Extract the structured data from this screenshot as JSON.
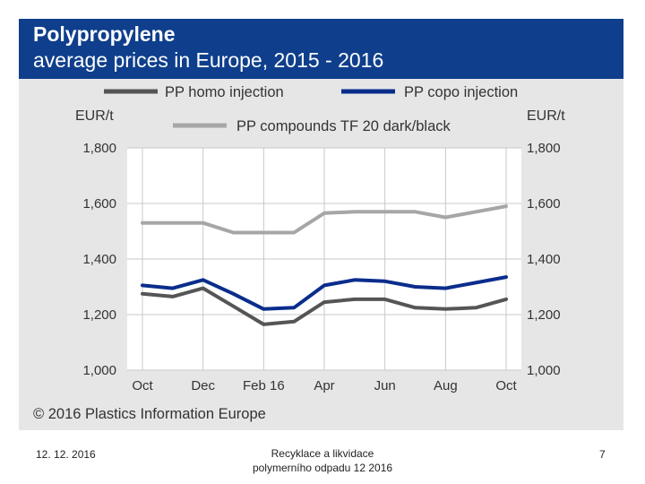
{
  "chart_data": {
    "type": "line",
    "title": "Polypropylene",
    "subtitle": "average prices in Europe, 2015 - 2016",
    "ylabel_left": "EUR/t",
    "ylabel_right": "EUR/t",
    "ylim": [
      1000,
      1800
    ],
    "yticks": [
      1000,
      1200,
      1400,
      1600,
      1800
    ],
    "ytick_labels": [
      "1,000",
      "1,200",
      "1,400",
      "1,600",
      "1,800"
    ],
    "x": [
      "Oct",
      "Nov",
      "Dec",
      "Jan",
      "Feb 16",
      "Mar",
      "Apr",
      "May",
      "Jun",
      "Jul",
      "Aug",
      "Sep",
      "Oct"
    ],
    "xtick_labels": [
      {
        "index": 0,
        "label": "Oct"
      },
      {
        "index": 2,
        "label": "Dec"
      },
      {
        "index": 4,
        "label": "Feb 16"
      },
      {
        "index": 6,
        "label": "Apr"
      },
      {
        "index": 8,
        "label": "Jun"
      },
      {
        "index": 10,
        "label": "Aug"
      },
      {
        "index": 12,
        "label": "Oct"
      }
    ],
    "grid": true,
    "legend_position": "top",
    "series": [
      {
        "name": "PP homo injection",
        "color": "#555555",
        "values": [
          1275,
          1265,
          1295,
          1230,
          1165,
          1175,
          1245,
          1255,
          1255,
          1225,
          1220,
          1225,
          1255
        ]
      },
      {
        "name": "PP copo injection",
        "color": "#0a2d8c",
        "values": [
          1305,
          1295,
          1325,
          1275,
          1220,
          1225,
          1305,
          1325,
          1320,
          1300,
          1295,
          1315,
          1335
        ]
      },
      {
        "name": "PP compounds TF 20 dark/black",
        "color": "#a6a6a6",
        "values": [
          1530,
          1530,
          1530,
          1495,
          1495,
          1495,
          1565,
          1570,
          1570,
          1570,
          1550,
          1570,
          1590
        ]
      }
    ]
  },
  "copyright": "© 2016 Plastics Information Europe",
  "footer": {
    "date": "12. 12. 2016",
    "center_line1": "Recyklace a likvidace",
    "center_line2": "polymerního odpadu 12 2016",
    "page": "7"
  }
}
